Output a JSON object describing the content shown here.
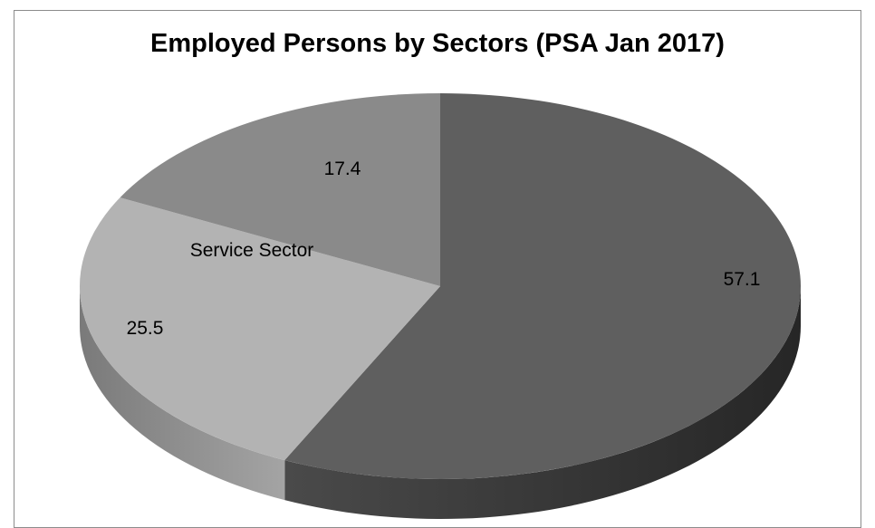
{
  "chart_data": {
    "type": "pie",
    "title": "Employed Persons by Sectors (PSA Jan 2017)",
    "slices": [
      {
        "value": 57.1,
        "value_label": "57.1",
        "category_label": "",
        "color": "#5f5f5f",
        "side_color": "#3c3c3c"
      },
      {
        "value": 25.5,
        "value_label": "25.5",
        "category_label": "Service Sector",
        "color": "#b3b3b3",
        "side_color": "#9a9a9a"
      },
      {
        "value": 17.4,
        "value_label": "17.4",
        "category_label": "",
        "color": "#8a8a8a",
        "side_color": "#6f6f6f"
      }
    ],
    "style": "3d-pie",
    "legend": "none"
  }
}
